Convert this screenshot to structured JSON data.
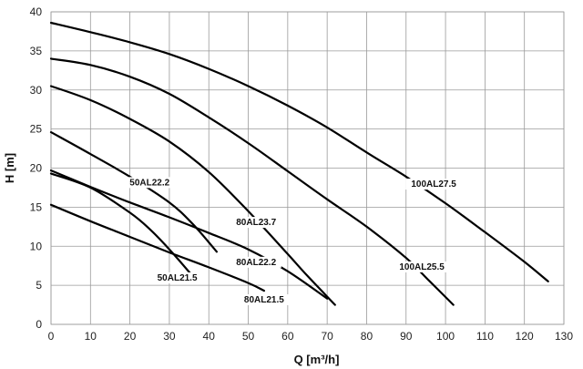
{
  "chart_data": {
    "type": "line",
    "xlabel": "Q [m³/h]",
    "ylabel": "H [m]",
    "xlim": [
      0,
      130
    ],
    "ylim": [
      0,
      40
    ],
    "xticks": [
      0,
      10,
      20,
      30,
      40,
      50,
      60,
      70,
      80,
      90,
      100,
      110,
      120,
      130
    ],
    "yticks": [
      0,
      5,
      10,
      15,
      20,
      25,
      30,
      35,
      40
    ],
    "grid": true,
    "series": [
      {
        "name": "100AL27.5",
        "x": [
          0,
          10,
          20,
          30,
          40,
          50,
          60,
          70,
          80,
          90,
          100,
          110,
          120,
          126
        ],
        "y": [
          38.6,
          37.4,
          36.1,
          34.6,
          32.7,
          30.5,
          28.0,
          25.2,
          22.0,
          18.9,
          15.5,
          11.8,
          8.0,
          5.5
        ]
      },
      {
        "name": "100AL25.5",
        "x": [
          0,
          10,
          20,
          30,
          40,
          50,
          60,
          70,
          80,
          90,
          96,
          102
        ],
        "y": [
          34.0,
          33.2,
          31.7,
          29.5,
          26.5,
          23.2,
          19.6,
          16.0,
          12.5,
          8.5,
          5.5,
          2.5
        ]
      },
      {
        "name": "80AL23.7",
        "x": [
          0,
          10,
          20,
          30,
          40,
          50,
          60,
          65,
          72
        ],
        "y": [
          30.5,
          28.7,
          26.3,
          23.4,
          19.5,
          14.5,
          9.0,
          6.2,
          2.5
        ]
      },
      {
        "name": "50AL22.2",
        "x": [
          0,
          10,
          20,
          30,
          36,
          42
        ],
        "y": [
          24.6,
          21.8,
          18.9,
          15.6,
          12.8,
          9.3
        ]
      },
      {
        "name": "80AL22.2",
        "x": [
          0,
          10,
          20,
          30,
          40,
          50,
          60,
          70
        ],
        "y": [
          19.7,
          17.6,
          15.6,
          13.7,
          11.7,
          9.6,
          6.8,
          3.3
        ]
      },
      {
        "name": "50AL21.5",
        "x": [
          0,
          10,
          20,
          25,
          30,
          35,
          37
        ],
        "y": [
          19.3,
          17.5,
          14.3,
          12.2,
          9.6,
          6.7,
          5.4
        ]
      },
      {
        "name": "80AL21.5",
        "x": [
          0,
          10,
          20,
          30,
          40,
          50,
          54
        ],
        "y": [
          15.3,
          13.2,
          11.2,
          9.2,
          7.3,
          5.3,
          4.3
        ]
      }
    ]
  }
}
